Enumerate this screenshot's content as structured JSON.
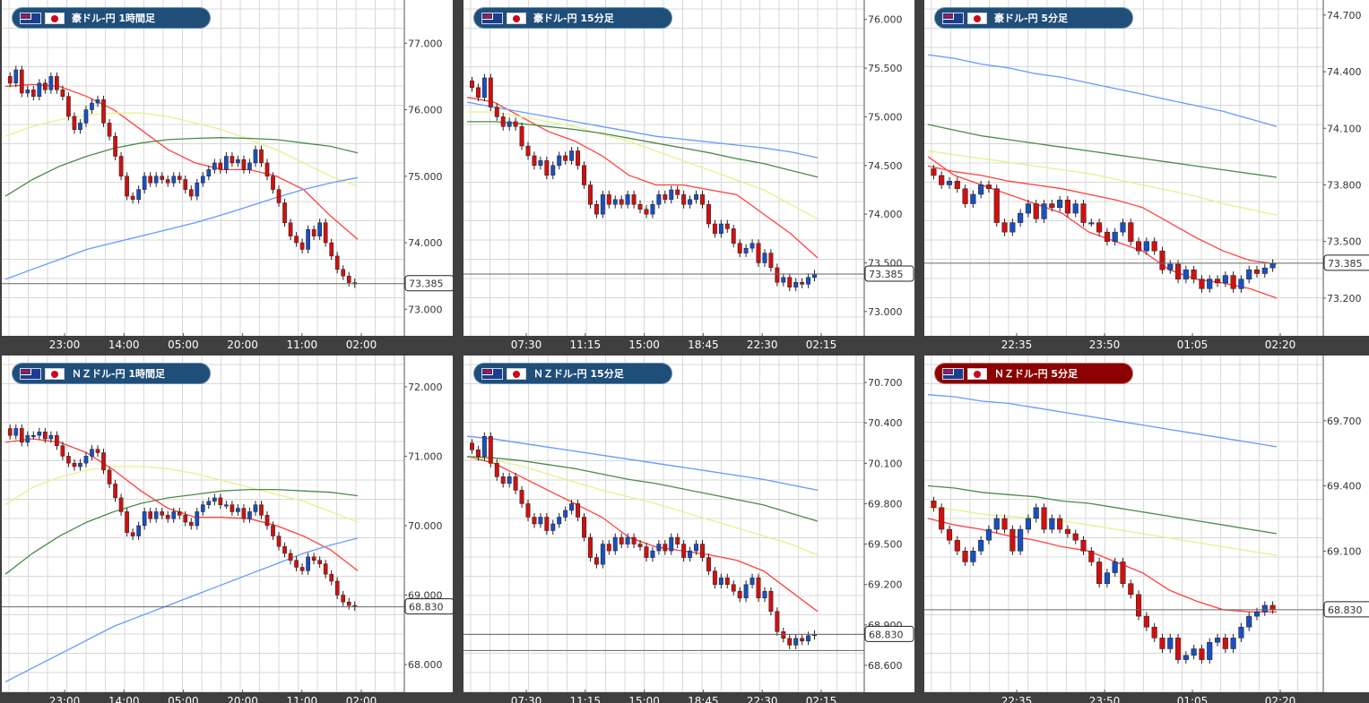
{
  "chart_data": [
    {
      "type": "candlestick",
      "title": "豪ドル-円 1時間足",
      "current_price": "73.385",
      "current_value": 73.385,
      "ylim": [
        72.6,
        77.65
      ],
      "y_ticks": [
        "77.000",
        "76.000",
        "75.000",
        "74.000",
        "73.000"
      ],
      "x_ticks": [
        "23:00",
        "14:00",
        "05:00",
        "20:00",
        "11:00",
        "02:00"
      ],
      "series": [
        {
          "color": "#ff4040",
          "values": [
            76.35,
            76.38,
            76.35,
            76.2,
            76.0,
            75.7,
            75.4,
            75.2,
            75.1,
            75.1,
            75.0,
            74.8,
            74.4,
            74.05
          ]
        },
        {
          "color": "#e8f08a",
          "values": [
            75.6,
            75.75,
            75.85,
            75.92,
            75.95,
            75.95,
            75.9,
            75.8,
            75.7,
            75.55,
            75.4,
            75.2,
            75.0,
            74.85
          ]
        },
        {
          "color": "#4a8a4a",
          "values": [
            74.7,
            74.95,
            75.15,
            75.3,
            75.42,
            75.5,
            75.55,
            75.57,
            75.58,
            75.57,
            75.55,
            75.5,
            75.45,
            75.35
          ]
        },
        {
          "color": "#6699ff",
          "values": [
            73.45,
            73.6,
            73.75,
            73.9,
            74.0,
            74.1,
            74.2,
            74.3,
            74.42,
            74.55,
            74.68,
            74.8,
            74.9,
            74.98
          ]
        }
      ],
      "candles": [
        76.4,
        76.6,
        76.25,
        76.3,
        76.2,
        76.4,
        76.3,
        76.5,
        76.3,
        76.2,
        75.9,
        75.7,
        75.8,
        76.0,
        76.1,
        76.15,
        75.8,
        75.6,
        75.3,
        75.0,
        74.7,
        74.65,
        74.8,
        75.0,
        74.9,
        75.0,
        74.95,
        74.9,
        75.0,
        74.95,
        74.8,
        74.7,
        74.9,
        75.0,
        75.1,
        75.2,
        75.1,
        75.3,
        75.2,
        75.25,
        75.1,
        75.2,
        75.4,
        75.2,
        75.0,
        74.8,
        74.6,
        74.3,
        74.1,
        74.0,
        73.9,
        74.2,
        74.1,
        74.3,
        74.0,
        73.8,
        73.6,
        73.5,
        73.4,
        73.38
      ],
      "extra_hlines": []
    },
    {
      "type": "candlestick",
      "title": "豪ドル-円 15分足",
      "current_price": "73.385",
      "current_value": 73.385,
      "ylim": [
        72.75,
        76.2
      ],
      "y_ticks": [
        "76.000",
        "75.500",
        "75.000",
        "74.500",
        "74.000",
        "73.500",
        "73.000"
      ],
      "x_ticks": [
        "07:30",
        "11:15",
        "15:00",
        "18:45",
        "22:30",
        "02:15"
      ],
      "series": [
        {
          "color": "#ff4040",
          "values": [
            75.2,
            75.15,
            75.0,
            74.85,
            74.75,
            74.6,
            74.4,
            74.3,
            74.3,
            74.25,
            74.2,
            74.0,
            73.8,
            73.55
          ]
        },
        {
          "color": "#e8f08a",
          "values": [
            75.05,
            75.05,
            75.0,
            74.95,
            74.9,
            74.82,
            74.75,
            74.65,
            74.55,
            74.45,
            74.35,
            74.25,
            74.1,
            73.95
          ]
        },
        {
          "color": "#4a8a4a",
          "values": [
            74.95,
            74.95,
            74.93,
            74.9,
            74.87,
            74.83,
            74.78,
            74.73,
            74.68,
            74.63,
            74.57,
            74.52,
            74.45,
            74.38
          ]
        },
        {
          "color": "#6699ff",
          "values": [
            75.15,
            75.1,
            75.05,
            75.0,
            74.95,
            74.9,
            74.85,
            74.8,
            74.77,
            74.74,
            74.71,
            74.68,
            74.64,
            74.58
          ]
        }
      ],
      "candles": [
        75.3,
        75.2,
        75.4,
        75.1,
        75.0,
        74.9,
        74.95,
        74.9,
        74.7,
        74.6,
        74.5,
        74.55,
        74.4,
        74.5,
        74.6,
        74.55,
        74.65,
        74.5,
        74.3,
        74.1,
        74.0,
        74.2,
        74.1,
        74.15,
        74.1,
        74.2,
        74.1,
        74.05,
        74.0,
        74.1,
        74.2,
        74.15,
        74.25,
        74.2,
        74.1,
        74.15,
        74.2,
        74.1,
        73.9,
        73.8,
        73.9,
        73.85,
        73.7,
        73.6,
        73.65,
        73.7,
        73.5,
        73.6,
        73.45,
        73.3,
        73.35,
        73.25,
        73.3,
        73.28,
        73.35,
        73.385
      ],
      "extra_hlines": []
    },
    {
      "type": "candlestick",
      "title": "豪ドル-円 5分足",
      "current_price": "73.385",
      "current_value": 73.385,
      "ylim": [
        73.0,
        74.78
      ],
      "y_ticks": [
        "74.700",
        "74.400",
        "74.100",
        "73.800",
        "73.500",
        "73.200"
      ],
      "x_ticks": [
        "22:35",
        "23:50",
        "01:05",
        "02:20"
      ],
      "series": [
        {
          "color": "#ff4040",
          "values": [
            73.9,
            73.87,
            73.85,
            73.82,
            73.8,
            73.78,
            73.75,
            73.72,
            73.68,
            73.6,
            73.52,
            73.45,
            73.4,
            73.38
          ]
        },
        {
          "color": "#e8f08a",
          "values": [
            73.98,
            73.96,
            73.94,
            73.92,
            73.9,
            73.88,
            73.86,
            73.83,
            73.8,
            73.77,
            73.74,
            73.7,
            73.67,
            73.64
          ]
        },
        {
          "color": "#4a8a4a",
          "values": [
            74.12,
            74.09,
            74.06,
            74.04,
            74.02,
            74.0,
            73.98,
            73.96,
            73.94,
            73.92,
            73.9,
            73.88,
            73.86,
            73.84
          ]
        },
        {
          "color": "#6699ff",
          "values": [
            74.49,
            74.47,
            74.44,
            74.42,
            74.39,
            74.37,
            74.34,
            74.31,
            74.28,
            74.25,
            74.22,
            74.19,
            74.15,
            74.11
          ]
        },
        {
          "color": "#ff4040",
          "values": [
            73.95,
            73.85,
            73.8,
            73.75,
            73.7,
            73.65,
            73.55,
            73.5,
            73.45,
            73.35,
            73.3,
            73.28,
            73.25,
            73.2
          ]
        }
      ],
      "candles": [
        73.85,
        73.8,
        73.82,
        73.78,
        73.7,
        73.75,
        73.8,
        73.78,
        73.6,
        73.55,
        73.6,
        73.65,
        73.7,
        73.62,
        73.7,
        73.68,
        73.72,
        73.65,
        73.7,
        73.6,
        73.6,
        73.55,
        73.5,
        73.55,
        73.6,
        73.5,
        73.45,
        73.5,
        73.45,
        73.35,
        73.38,
        73.3,
        73.35,
        73.3,
        73.25,
        73.3,
        73.28,
        73.32,
        73.25,
        73.3,
        73.35,
        73.33,
        73.36,
        73.385
      ],
      "extra_hlines": []
    },
    {
      "type": "candlestick",
      "title": "ＮＺドル-円 1時間足",
      "current_price": "68.830",
      "current_value": 68.83,
      "ylim": [
        67.6,
        72.45
      ],
      "y_ticks": [
        "72.000",
        "71.000",
        "70.000",
        "69.000",
        "68.000"
      ],
      "x_ticks": [
        "23:00",
        "14:00",
        "05:00",
        "20:00",
        "11:00",
        "02:00"
      ],
      "series": [
        {
          "color": "#ff4040",
          "values": [
            71.2,
            71.25,
            71.2,
            71.05,
            70.8,
            70.5,
            70.25,
            70.12,
            70.12,
            70.1,
            70.0,
            69.85,
            69.65,
            69.35
          ]
        },
        {
          "color": "#e8f08a",
          "values": [
            70.3,
            70.55,
            70.7,
            70.8,
            70.85,
            70.85,
            70.82,
            70.75,
            70.65,
            70.55,
            70.45,
            70.35,
            70.2,
            70.05
          ]
        },
        {
          "color": "#4a8a4a",
          "values": [
            69.3,
            69.6,
            69.85,
            70.05,
            70.2,
            70.32,
            70.4,
            70.45,
            70.5,
            70.52,
            70.52,
            70.5,
            70.48,
            70.43
          ]
        },
        {
          "color": "#6699ff",
          "values": [
            67.75,
            67.95,
            68.15,
            68.35,
            68.55,
            68.7,
            68.85,
            69.0,
            69.15,
            69.3,
            69.45,
            69.6,
            69.72,
            69.82
          ]
        }
      ],
      "candles": [
        71.3,
        71.4,
        71.2,
        71.3,
        71.3,
        71.35,
        71.25,
        71.3,
        71.15,
        71.0,
        70.9,
        70.85,
        70.9,
        71.0,
        71.1,
        71.05,
        70.8,
        70.6,
        70.4,
        70.2,
        69.9,
        69.85,
        70.0,
        70.2,
        70.1,
        70.2,
        70.15,
        70.1,
        70.2,
        70.15,
        70.05,
        70.0,
        70.2,
        70.3,
        70.35,
        70.4,
        70.3,
        70.3,
        70.2,
        70.25,
        70.1,
        70.2,
        70.3,
        70.15,
        70.0,
        69.85,
        69.7,
        69.6,
        69.5,
        69.4,
        69.35,
        69.55,
        69.5,
        69.45,
        69.3,
        69.2,
        69.0,
        68.9,
        68.85,
        68.83
      ],
      "extra_hlines": []
    },
    {
      "type": "candlestick",
      "title": "ＮＺドル-円 15分足",
      "current_price": "68.830",
      "current_value": 68.83,
      "ylim": [
        68.4,
        70.9
      ],
      "y_ticks": [
        "70.700",
        "70.400",
        "70.100",
        "69.800",
        "69.500",
        "69.200",
        "68.900",
        "68.600"
      ],
      "x_ticks": [
        "07:30",
        "11:15",
        "15:00",
        "18:45",
        "22:30",
        "02:15"
      ],
      "series": [
        {
          "color": "#ff4040",
          "values": [
            70.15,
            70.1,
            70.0,
            69.9,
            69.8,
            69.7,
            69.55,
            69.48,
            69.45,
            69.42,
            69.38,
            69.3,
            69.15,
            69.0
          ]
        },
        {
          "color": "#e8f08a",
          "values": [
            70.15,
            70.12,
            70.08,
            70.02,
            69.96,
            69.9,
            69.85,
            69.8,
            69.74,
            69.68,
            69.62,
            69.56,
            69.5,
            69.42
          ]
        },
        {
          "color": "#4a8a4a",
          "values": [
            70.15,
            70.14,
            70.12,
            70.09,
            70.06,
            70.02,
            69.98,
            69.95,
            69.91,
            69.87,
            69.83,
            69.79,
            69.73,
            69.67
          ]
        },
        {
          "color": "#6699ff",
          "values": [
            70.3,
            70.28,
            70.25,
            70.22,
            70.19,
            70.16,
            70.13,
            70.1,
            70.07,
            70.04,
            70.01,
            69.98,
            69.94,
            69.9
          ]
        }
      ],
      "candles": [
        70.2,
        70.15,
        70.3,
        70.1,
        70.0,
        69.95,
        70.0,
        69.9,
        69.8,
        69.7,
        69.65,
        69.7,
        69.6,
        69.65,
        69.7,
        69.75,
        69.8,
        69.7,
        69.55,
        69.4,
        69.35,
        69.5,
        69.45,
        69.55,
        69.5,
        69.55,
        69.5,
        69.48,
        69.4,
        69.45,
        69.5,
        69.45,
        69.55,
        69.5,
        69.4,
        69.45,
        69.5,
        69.4,
        69.3,
        69.2,
        69.25,
        69.2,
        69.15,
        69.1,
        69.2,
        69.25,
        69.1,
        69.15,
        69.0,
        68.85,
        68.8,
        68.75,
        68.8,
        68.78,
        68.82,
        68.83
      ],
      "extra_hlines": [
        68.83
      ]
    },
    {
      "type": "candlestick",
      "title": "ＮＺドル-円 5分足",
      "current_price": "68.830",
      "current_value": 68.83,
      "ylim": [
        68.45,
        70.0
      ],
      "y_ticks": [
        "69.700",
        "69.400",
        "69.100"
      ],
      "x_ticks": [
        "22:35",
        "23:50",
        "01:05",
        "02:20"
      ],
      "series": [
        {
          "color": "#ff4040",
          "values": [
            69.25,
            69.22,
            69.2,
            69.17,
            69.15,
            69.12,
            69.1,
            69.05,
            69.0,
            68.92,
            68.87,
            68.83,
            68.82,
            68.82
          ]
        },
        {
          "color": "#e8f08a",
          "values": [
            69.3,
            69.29,
            69.27,
            69.26,
            69.25,
            69.24,
            69.22,
            69.2,
            69.18,
            69.16,
            69.14,
            69.12,
            69.1,
            69.08
          ]
        },
        {
          "color": "#4a8a4a",
          "values": [
            69.4,
            69.39,
            69.37,
            69.36,
            69.35,
            69.33,
            69.32,
            69.3,
            69.28,
            69.26,
            69.24,
            69.22,
            69.2,
            69.18
          ]
        },
        {
          "color": "#6699ff",
          "values": [
            69.82,
            69.81,
            69.79,
            69.78,
            69.76,
            69.74,
            69.72,
            69.7,
            69.68,
            69.66,
            69.64,
            69.62,
            69.6,
            69.58
          ]
        }
      ],
      "candles": [
        69.3,
        69.2,
        69.15,
        69.1,
        69.05,
        69.1,
        69.15,
        69.2,
        69.25,
        69.2,
        69.1,
        69.2,
        69.25,
        69.3,
        69.2,
        69.25,
        69.2,
        69.18,
        69.15,
        69.1,
        69.05,
        68.95,
        69.0,
        69.05,
        68.95,
        68.9,
        68.8,
        68.75,
        68.7,
        68.65,
        68.7,
        68.6,
        68.62,
        68.65,
        68.6,
        68.68,
        68.7,
        68.65,
        68.7,
        68.75,
        68.8,
        68.82,
        68.85,
        68.83
      ],
      "extra_hlines": []
    }
  ],
  "colors": {
    "bull": "#1a4fbf",
    "bear": "#d01010",
    "wick": "#222222",
    "grid": "#d8d8d8",
    "price_line": "#666666"
  }
}
